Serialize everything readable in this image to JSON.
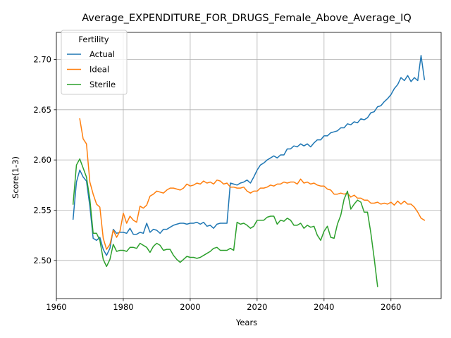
{
  "chart_data": {
    "type": "line",
    "title": "Average_EXPENDITURE_FOR_DRUGS_Female_Above_Average_IQ",
    "xlabel": "Years",
    "ylabel": "Score(1-3)",
    "xlim": [
      1960,
      2075
    ],
    "ylim": [
      2.462,
      2.727
    ],
    "xticks": [
      1960,
      1980,
      2000,
      2020,
      2040,
      2060
    ],
    "yticks": [
      2.5,
      2.55,
      2.6,
      2.65,
      2.7
    ],
    "grid": true,
    "legend": {
      "title": "Fertility",
      "placement": "top-left"
    },
    "series": [
      {
        "name": "Actual",
        "color": "#1f77b4",
        "x": [
          1965,
          1966,
          1967,
          1968,
          1969,
          1970,
          1971,
          1972,
          1973,
          1974,
          1975,
          1976,
          1977,
          1978,
          1979,
          1980,
          1981,
          1982,
          1983,
          1984,
          1985,
          1986,
          1987,
          1988,
          1989,
          1990,
          1991,
          1992,
          1993,
          1994,
          1995,
          1996,
          1997,
          1998,
          1999,
          2000,
          2001,
          2002,
          2003,
          2004,
          2005,
          2006,
          2007,
          2008,
          2009,
          2010,
          2011,
          2012,
          2013,
          2014,
          2015,
          2016,
          2017,
          2018,
          2019,
          2020,
          2021,
          2022,
          2023,
          2024,
          2025,
          2026,
          2027,
          2028,
          2029,
          2030,
          2031,
          2032,
          2033,
          2034,
          2035,
          2036,
          2037,
          2038,
          2039,
          2040,
          2041,
          2042,
          2043,
          2044,
          2045,
          2046,
          2047,
          2048,
          2049,
          2050,
          2051,
          2052,
          2053,
          2054,
          2055,
          2056,
          2057,
          2058,
          2059,
          2060,
          2061,
          2062,
          2063,
          2064,
          2065,
          2066,
          2067,
          2068,
          2069,
          2070
        ],
        "values": [
          2.541,
          2.578,
          2.59,
          2.583,
          2.579,
          2.554,
          2.522,
          2.52,
          2.523,
          2.511,
          2.505,
          2.512,
          2.531,
          2.527,
          2.528,
          2.528,
          2.527,
          2.532,
          2.526,
          2.526,
          2.528,
          2.527,
          2.537,
          2.528,
          2.531,
          2.53,
          2.527,
          2.531,
          2.531,
          2.533,
          2.535,
          2.536,
          2.537,
          2.537,
          2.536,
          2.537,
          2.537,
          2.538,
          2.536,
          2.538,
          2.534,
          2.535,
          2.532,
          2.536,
          2.537,
          2.537,
          2.537,
          2.577,
          2.576,
          2.575,
          2.577,
          2.578,
          2.58,
          2.577,
          2.583,
          2.59,
          2.595,
          2.597,
          2.6,
          2.602,
          2.604,
          2.602,
          2.605,
          2.605,
          2.611,
          2.611,
          2.614,
          2.613,
          2.616,
          2.614,
          2.616,
          2.613,
          2.617,
          2.62,
          2.62,
          2.624,
          2.624,
          2.627,
          2.628,
          2.629,
          2.632,
          2.632,
          2.636,
          2.635,
          2.638,
          2.637,
          2.641,
          2.64,
          2.642,
          2.647,
          2.648,
          2.653,
          2.654,
          2.658,
          2.661,
          2.665,
          2.671,
          2.675,
          2.682,
          2.679,
          2.684,
          2.678,
          2.682,
          2.679,
          2.704,
          2.68
        ]
      },
      {
        "name": "Ideal",
        "color": "#ff7f0e",
        "x": [
          1967,
          1968,
          1969,
          1970,
          1971,
          1972,
          1973,
          1974,
          1975,
          1976,
          1977,
          1978,
          1979,
          1980,
          1981,
          1982,
          1983,
          1984,
          1985,
          1986,
          1987,
          1988,
          1989,
          1990,
          1991,
          1992,
          1993,
          1994,
          1995,
          1996,
          1997,
          1998,
          1999,
          2000,
          2001,
          2002,
          2003,
          2004,
          2005,
          2006,
          2007,
          2008,
          2009,
          2010,
          2011,
          2012,
          2013,
          2014,
          2015,
          2016,
          2017,
          2018,
          2019,
          2020,
          2021,
          2022,
          2023,
          2024,
          2025,
          2026,
          2027,
          2028,
          2029,
          2030,
          2031,
          2032,
          2033,
          2034,
          2035,
          2036,
          2037,
          2038,
          2039,
          2040,
          2041,
          2042,
          2043,
          2044,
          2045,
          2046,
          2047,
          2048,
          2049,
          2050,
          2051,
          2052,
          2053,
          2054,
          2055,
          2056,
          2057,
          2058,
          2059,
          2060,
          2061,
          2062,
          2063,
          2064,
          2065,
          2066,
          2067,
          2068,
          2069,
          2070
        ],
        "values": [
          2.641,
          2.621,
          2.616,
          2.578,
          2.566,
          2.556,
          2.553,
          2.522,
          2.511,
          2.516,
          2.53,
          2.523,
          2.529,
          2.547,
          2.537,
          2.544,
          2.54,
          2.538,
          2.554,
          2.552,
          2.555,
          2.564,
          2.566,
          2.569,
          2.568,
          2.567,
          2.57,
          2.572,
          2.572,
          2.571,
          2.57,
          2.572,
          2.576,
          2.574,
          2.575,
          2.577,
          2.576,
          2.579,
          2.577,
          2.578,
          2.576,
          2.58,
          2.579,
          2.576,
          2.577,
          2.573,
          2.573,
          2.572,
          2.572,
          2.573,
          2.569,
          2.567,
          2.569,
          2.569,
          2.572,
          2.572,
          2.573,
          2.575,
          2.574,
          2.576,
          2.576,
          2.578,
          2.577,
          2.578,
          2.578,
          2.576,
          2.581,
          2.577,
          2.578,
          2.576,
          2.577,
          2.575,
          2.574,
          2.574,
          2.571,
          2.57,
          2.566,
          2.566,
          2.567,
          2.566,
          2.567,
          2.563,
          2.565,
          2.562,
          2.562,
          2.56,
          2.56,
          2.557,
          2.557,
          2.558,
          2.556,
          2.557,
          2.556,
          2.558,
          2.555,
          2.559,
          2.556,
          2.559,
          2.556,
          2.556,
          2.553,
          2.548,
          2.542,
          2.54
        ]
      },
      {
        "name": "Sterile",
        "color": "#2ca02c",
        "x": [
          1965,
          1966,
          1967,
          1968,
          1969,
          1970,
          1971,
          1972,
          1973,
          1974,
          1975,
          1976,
          1977,
          1978,
          1979,
          1980,
          1981,
          1982,
          1983,
          1984,
          1985,
          1986,
          1987,
          1988,
          1989,
          1990,
          1991,
          1992,
          1993,
          1994,
          1995,
          1996,
          1997,
          1998,
          1999,
          2000,
          2001,
          2002,
          2003,
          2004,
          2005,
          2006,
          2007,
          2008,
          2009,
          2010,
          2011,
          2012,
          2013,
          2014,
          2015,
          2016,
          2017,
          2018,
          2019,
          2020,
          2021,
          2022,
          2023,
          2024,
          2025,
          2026,
          2027,
          2028,
          2029,
          2030,
          2031,
          2032,
          2033,
          2034,
          2035,
          2036,
          2037,
          2038,
          2039,
          2040,
          2041,
          2042,
          2043,
          2044,
          2045,
          2046,
          2047,
          2048,
          2049,
          2050,
          2051,
          2052,
          2053,
          2054,
          2055,
          2056
        ],
        "values": [
          2.556,
          2.595,
          2.601,
          2.592,
          2.583,
          2.561,
          2.527,
          2.527,
          2.52,
          2.501,
          2.494,
          2.501,
          2.516,
          2.509,
          2.51,
          2.51,
          2.509,
          2.513,
          2.513,
          2.512,
          2.517,
          2.515,
          2.513,
          2.508,
          2.514,
          2.517,
          2.515,
          2.51,
          2.511,
          2.511,
          2.505,
          2.501,
          2.498,
          2.501,
          2.504,
          2.503,
          2.503,
          2.502,
          2.503,
          2.505,
          2.507,
          2.509,
          2.512,
          2.513,
          2.51,
          2.51,
          2.51,
          2.512,
          2.51,
          2.538,
          2.536,
          2.537,
          2.535,
          2.532,
          2.534,
          2.54,
          2.54,
          2.54,
          2.543,
          2.544,
          2.544,
          2.536,
          2.54,
          2.539,
          2.542,
          2.54,
          2.535,
          2.535,
          2.537,
          2.532,
          2.535,
          2.533,
          2.534,
          2.525,
          2.52,
          2.529,
          2.534,
          2.523,
          2.522,
          2.536,
          2.545,
          2.561,
          2.569,
          2.551,
          2.556,
          2.56,
          2.558,
          2.548,
          2.548,
          2.527,
          2.502,
          2.474
        ]
      }
    ]
  }
}
